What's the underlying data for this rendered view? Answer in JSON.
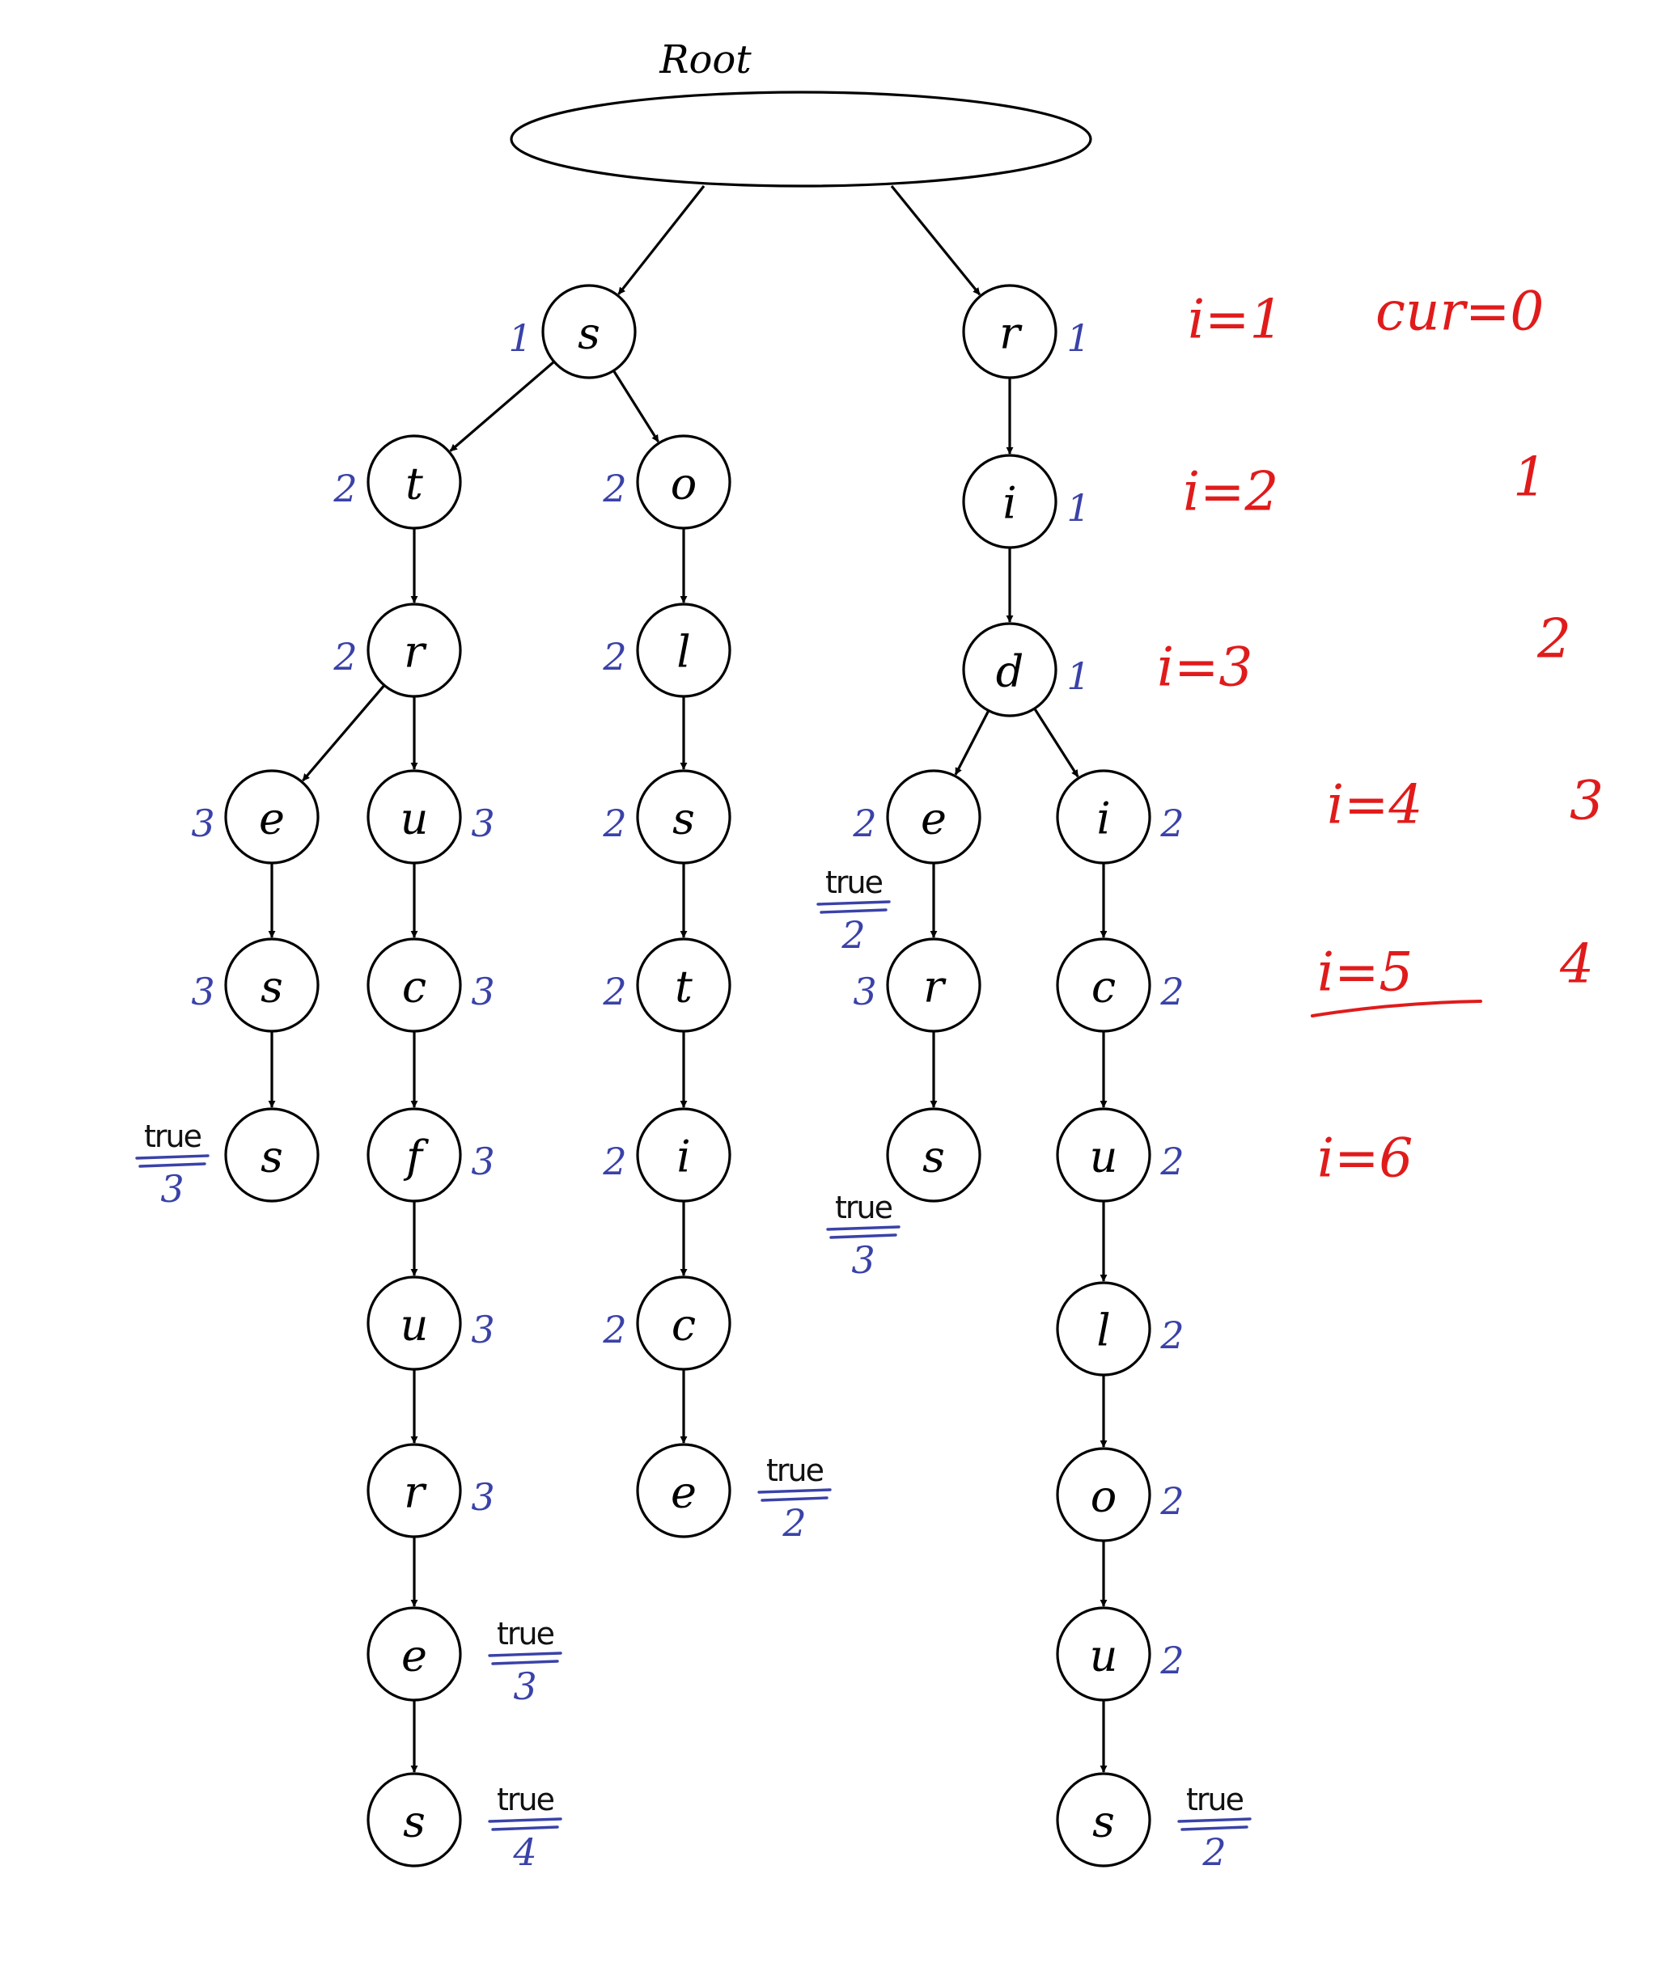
{
  "root_label": "Root",
  "nodes": [
    {
      "id": "s1",
      "letter": "s",
      "count": "1"
    },
    {
      "id": "t",
      "letter": "t",
      "count": "2"
    },
    {
      "id": "o1",
      "letter": "o",
      "count": "2"
    },
    {
      "id": "r1",
      "letter": "r",
      "count": "2"
    },
    {
      "id": "e1",
      "letter": "e",
      "count": "3"
    },
    {
      "id": "s2",
      "letter": "s",
      "count": "3"
    },
    {
      "id": "s3",
      "letter": "s",
      "true_label": "true",
      "true_count": "3"
    },
    {
      "id": "u1",
      "letter": "u",
      "count": "3"
    },
    {
      "id": "c1",
      "letter": "c",
      "count": "3"
    },
    {
      "id": "f",
      "letter": "f",
      "count": "3"
    },
    {
      "id": "u2",
      "letter": "u",
      "count": "3"
    },
    {
      "id": "r2",
      "letter": "r",
      "count": "3"
    },
    {
      "id": "e2",
      "letter": "e",
      "true_label": "true",
      "true_count": "3"
    },
    {
      "id": "s4",
      "letter": "s",
      "true_label": "true",
      "true_count": "4"
    },
    {
      "id": "l1",
      "letter": "l",
      "count": "2"
    },
    {
      "id": "s5",
      "letter": "s",
      "count": "2"
    },
    {
      "id": "t2",
      "letter": "t",
      "count": "2"
    },
    {
      "id": "i1",
      "letter": "i",
      "count": "2"
    },
    {
      "id": "c2",
      "letter": "c",
      "count": "2"
    },
    {
      "id": "e3",
      "letter": "e",
      "true_label": "true",
      "true_count": "2"
    },
    {
      "id": "r3",
      "letter": "r",
      "count": "1"
    },
    {
      "id": "i2",
      "letter": "i",
      "count": "1"
    },
    {
      "id": "d",
      "letter": "d",
      "count": "1"
    },
    {
      "id": "e4",
      "letter": "e",
      "count": "2",
      "true_label": "true",
      "true_count": "2"
    },
    {
      "id": "r4",
      "letter": "r",
      "count": "3"
    },
    {
      "id": "s6",
      "letter": "s",
      "true_label": "true",
      "true_count": "3"
    },
    {
      "id": "i3",
      "letter": "i",
      "count": "2"
    },
    {
      "id": "c3",
      "letter": "c",
      "count": "2"
    },
    {
      "id": "u3",
      "letter": "u",
      "count": "2"
    },
    {
      "id": "l2",
      "letter": "l",
      "count": "2"
    },
    {
      "id": "o2",
      "letter": "o",
      "count": "2"
    },
    {
      "id": "u4",
      "letter": "u",
      "count": "2"
    },
    {
      "id": "s7",
      "letter": "s",
      "true_label": "true",
      "true_count": "2"
    }
  ],
  "edges": [
    [
      "root",
      "s1"
    ],
    [
      "root",
      "r3"
    ],
    [
      "s1",
      "t"
    ],
    [
      "s1",
      "o1"
    ],
    [
      "t",
      "r1"
    ],
    [
      "r1",
      "e1"
    ],
    [
      "r1",
      "u1"
    ],
    [
      "e1",
      "s2"
    ],
    [
      "s2",
      "s3"
    ],
    [
      "u1",
      "c1"
    ],
    [
      "c1",
      "f"
    ],
    [
      "f",
      "u2"
    ],
    [
      "u2",
      "r2"
    ],
    [
      "r2",
      "e2"
    ],
    [
      "e2",
      "s4"
    ],
    [
      "o1",
      "l1"
    ],
    [
      "l1",
      "s5"
    ],
    [
      "s5",
      "t2"
    ],
    [
      "t2",
      "i1"
    ],
    [
      "i1",
      "c2"
    ],
    [
      "c2",
      "e3"
    ],
    [
      "r3",
      "i2"
    ],
    [
      "i2",
      "d"
    ],
    [
      "d",
      "e4"
    ],
    [
      "d",
      "i3"
    ],
    [
      "e4",
      "r4"
    ],
    [
      "r4",
      "s6"
    ],
    [
      "i3",
      "c3"
    ],
    [
      "c3",
      "u3"
    ],
    [
      "u3",
      "l2"
    ],
    [
      "l2",
      "o2"
    ],
    [
      "o2",
      "u4"
    ],
    [
      "u4",
      "s7"
    ]
  ],
  "annotations": {
    "i_values": [
      "i=1",
      "i=2",
      "i=3",
      "i=4",
      "i=5",
      "i=6"
    ],
    "cur_values": [
      "cur=0",
      "1",
      "2",
      "3",
      "4"
    ]
  }
}
